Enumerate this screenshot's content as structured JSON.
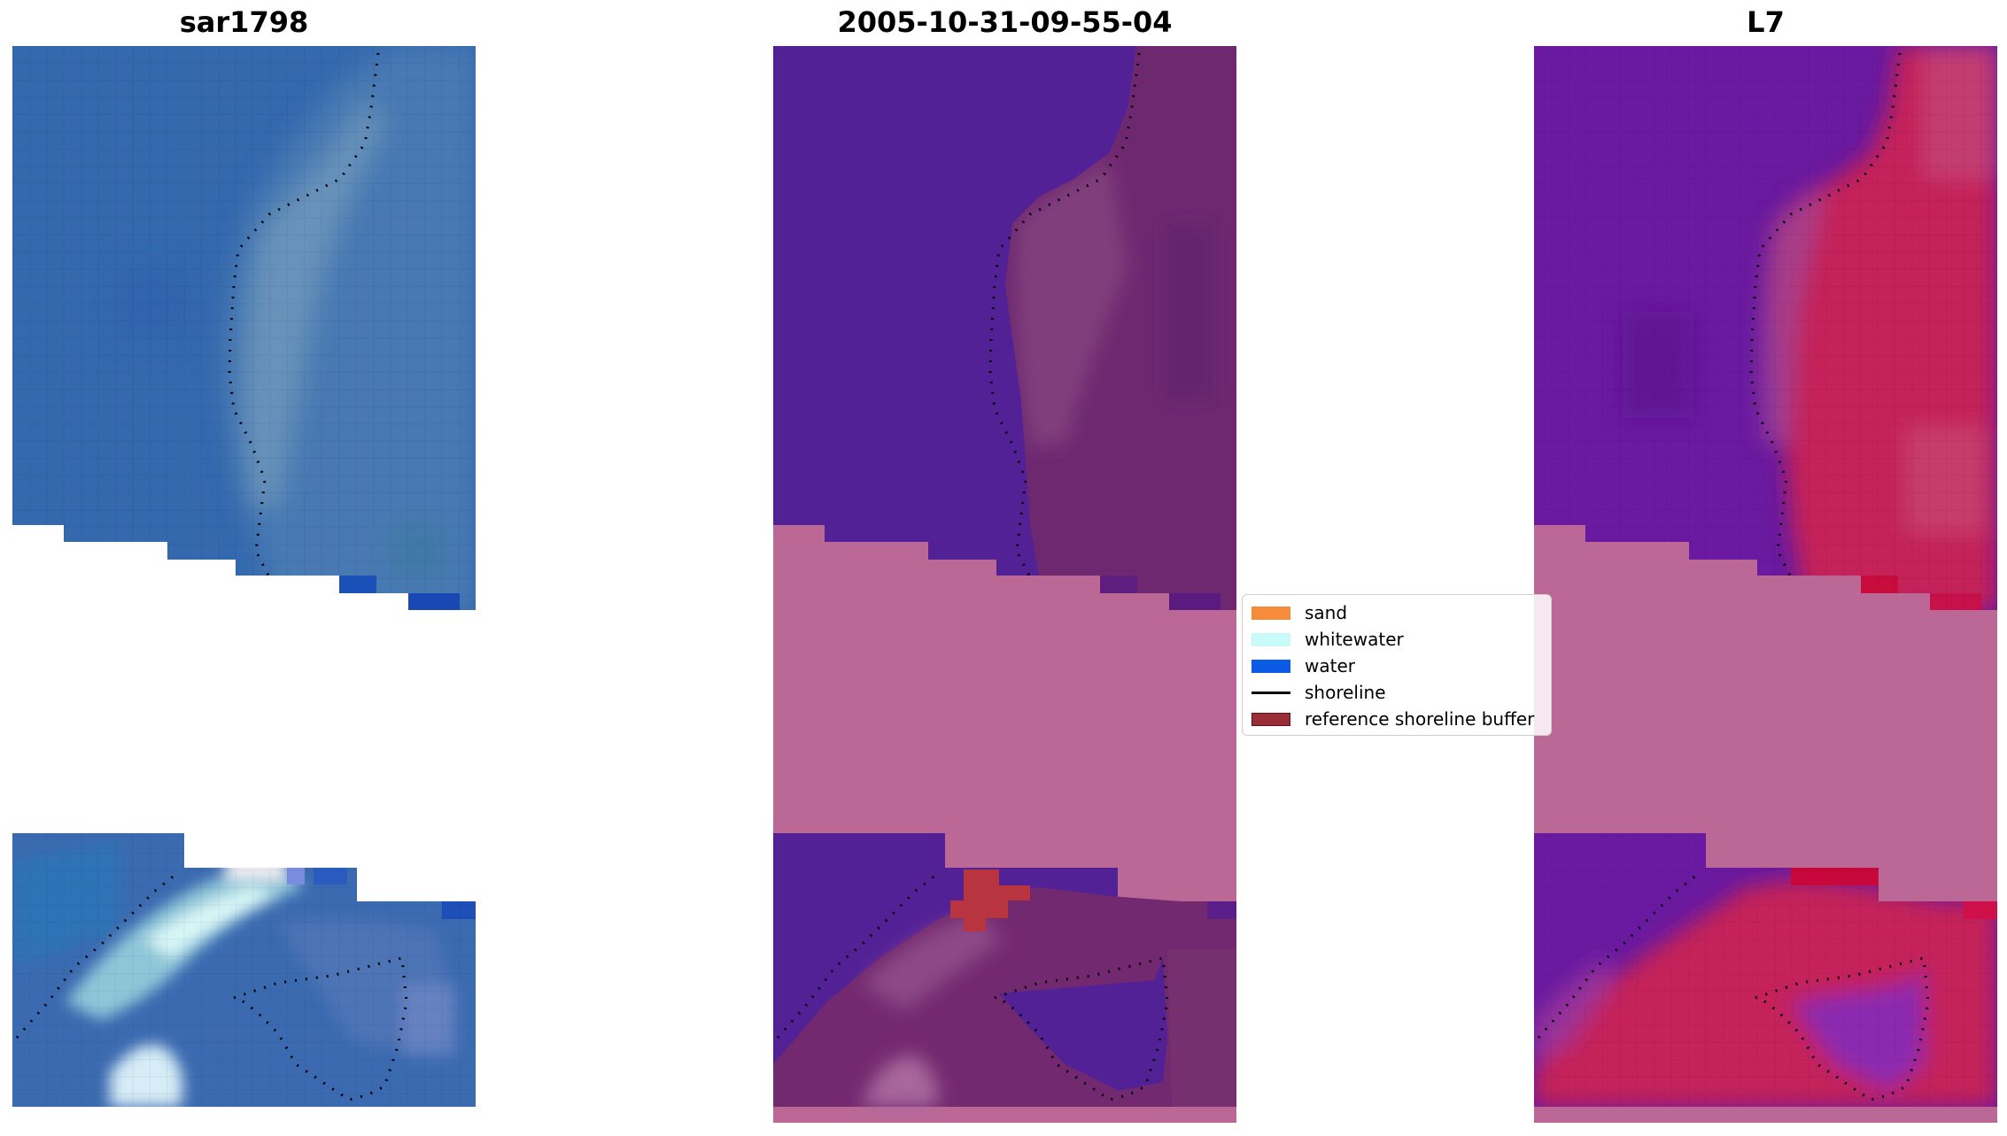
{
  "panels": [
    {
      "id": "sar",
      "title": "sar1798"
    },
    {
      "id": "date",
      "title": "2005-10-31-09-55-04"
    },
    {
      "id": "l7",
      "title": "L7"
    }
  ],
  "legend": {
    "items": [
      {
        "label": "sand",
        "color": "#f58c3c",
        "kind": "patch"
      },
      {
        "label": "whitewater",
        "color": "#c8fafa",
        "kind": "patch"
      },
      {
        "label": "water",
        "color": "#0a5ae6",
        "kind": "patch"
      },
      {
        "label": "shoreline",
        "color": "#000000",
        "kind": "line"
      },
      {
        "label": "reference shoreline buffer",
        "color": "#9b2d37",
        "kind": "patch"
      }
    ]
  },
  "colors": {
    "sar_base": "#3a6fb2",
    "water_class": "#532196",
    "land_class": "#6e286e",
    "no_data": "#bc6896",
    "l7_water": "#6a1aa0",
    "l7_land": "#c42058",
    "whitewater_patch": "#b8343e"
  }
}
